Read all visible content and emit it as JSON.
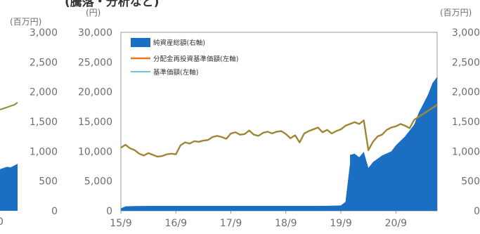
{
  "header": {
    "cut_title": "(騰落・分析など)"
  },
  "chart_data": [
    {
      "type": "area",
      "note_visibility": "partial",
      "y_right_unit": "(百万円)",
      "y_right_ticks": [
        "3,000",
        "2,500",
        "2,000",
        "1,500",
        "1,000",
        "500",
        "0"
      ],
      "x_ticks": [
        "0"
      ],
      "series": [
        {
          "values": [
            700,
            720,
            740,
            730,
            760,
            790
          ]
        },
        {
          "values": [
            1700,
            1720,
            1740,
            1760,
            1780,
            1820
          ]
        }
      ]
    },
    {
      "type": "line",
      "ylabel_left": "(円)",
      "ylabel_right": "(百万円)",
      "ylim_left": [
        0,
        30000
      ],
      "ylim_right": [
        0,
        3000
      ],
      "y_left_ticks": [
        "30,000",
        "25,000",
        "20,000",
        "15,000",
        "10,000",
        "5,000",
        "0"
      ],
      "y_right_ticks": [
        "3,000",
        "2,500",
        "2,000",
        "1,500",
        "1,000",
        "500",
        "0"
      ],
      "x_ticks": [
        "15/9",
        "16/9",
        "17/9",
        "18/9",
        "19/9",
        "20/9"
      ],
      "legend": [
        "純資産総額(右軸)",
        "分配金再投資基準価額(左軸)",
        "基準価額(左軸)"
      ],
      "colors": {
        "net_assets": "#1a6fc2",
        "reinvest": "#e87722",
        "nav": "#6ac7d6",
        "overlap": "#8c8c3a"
      },
      "x_range": [
        "2015-09",
        "2021-06"
      ],
      "series": [
        {
          "name": "純資産総額(右軸)",
          "axis": "right",
          "kind": "area",
          "x": [
            "2015-09",
            "2015-10",
            "2015-12",
            "2016-03",
            "2016-06",
            "2016-09",
            "2016-12",
            "2017-03",
            "2017-06",
            "2017-09",
            "2017-12",
            "2018-03",
            "2018-06",
            "2018-09",
            "2018-12",
            "2019-03",
            "2019-06",
            "2019-09",
            "2019-10",
            "2019-11",
            "2019-11",
            "2019-12",
            "2020-01",
            "2020-02",
            "2020-03",
            "2020-04",
            "2020-06",
            "2020-08",
            "2020-09",
            "2020-11",
            "2020-12",
            "2021-01",
            "2021-02",
            "2021-03",
            "2021-04",
            "2021-05",
            "2021-06"
          ],
          "values": [
            40,
            75,
            80,
            82,
            82,
            83,
            82,
            82,
            82,
            82,
            82,
            82,
            82,
            83,
            82,
            83,
            84,
            90,
            150,
            800,
            940,
            960,
            900,
            990,
            720,
            820,
            930,
            1000,
            1100,
            1250,
            1350,
            1450,
            1650,
            1800,
            1950,
            2150,
            2250
          ]
        },
        {
          "name": "分配金再投資基準価額(左軸)",
          "axis": "left",
          "kind": "line",
          "x": [
            "2015-09",
            "2015-10",
            "2015-11",
            "2015-12",
            "2016-01",
            "2016-02",
            "2016-03",
            "2016-04",
            "2016-05",
            "2016-06",
            "2016-07",
            "2016-08",
            "2016-09",
            "2016-10",
            "2016-11",
            "2016-12",
            "2017-01",
            "2017-02",
            "2017-03",
            "2017-04",
            "2017-05",
            "2017-06",
            "2017-07",
            "2017-08",
            "2017-09",
            "2017-10",
            "2017-11",
            "2017-12",
            "2018-01",
            "2018-02",
            "2018-03",
            "2018-04",
            "2018-05",
            "2018-06",
            "2018-07",
            "2018-08",
            "2018-09",
            "2018-10",
            "2018-11",
            "2018-12",
            "2019-01",
            "2019-02",
            "2019-03",
            "2019-04",
            "2019-05",
            "2019-06",
            "2019-07",
            "2019-08",
            "2019-09",
            "2019-10",
            "2019-11",
            "2019-12",
            "2020-01",
            "2020-02",
            "2020-03",
            "2020-04",
            "2020-05",
            "2020-06",
            "2020-07",
            "2020-08",
            "2020-09",
            "2020-10",
            "2020-11",
            "2020-12",
            "2021-01",
            "2021-02",
            "2021-03",
            "2021-04",
            "2021-05",
            "2021-06"
          ],
          "values": [
            10600,
            11100,
            10500,
            10200,
            9600,
            9300,
            9700,
            9400,
            9100,
            9200,
            9500,
            9600,
            9500,
            11000,
            11500,
            11300,
            11700,
            11600,
            11800,
            11900,
            12400,
            12600,
            12400,
            12100,
            13000,
            13200,
            12800,
            12900,
            13500,
            12800,
            12600,
            13100,
            13300,
            13000,
            13300,
            13400,
            12900,
            12200,
            12700,
            11500,
            13000,
            13400,
            13700,
            14000,
            13200,
            13600,
            13000,
            13400,
            13700,
            14300,
            14600,
            14900,
            14600,
            15200,
            10200,
            11600,
            12500,
            12800,
            13600,
            14000,
            14200,
            14600,
            14300,
            13900,
            15300,
            15800,
            16300,
            16800,
            17300,
            17800
          ]
        },
        {
          "name": "基準価額(左軸)",
          "axis": "left",
          "kind": "line",
          "x": [
            "2015-09",
            "2015-10",
            "2015-11",
            "2015-12",
            "2016-01",
            "2016-02",
            "2016-03",
            "2016-04",
            "2016-05",
            "2016-06",
            "2016-07",
            "2016-08",
            "2016-09",
            "2016-10",
            "2016-11",
            "2016-12",
            "2017-01",
            "2017-02",
            "2017-03",
            "2017-04",
            "2017-05",
            "2017-06",
            "2017-07",
            "2017-08",
            "2017-09",
            "2017-10",
            "2017-11",
            "2017-12",
            "2018-01",
            "2018-02",
            "2018-03",
            "2018-04",
            "2018-05",
            "2018-06",
            "2018-07",
            "2018-08",
            "2018-09",
            "2018-10",
            "2018-11",
            "2018-12",
            "2019-01",
            "2019-02",
            "2019-03",
            "2019-04",
            "2019-05",
            "2019-06",
            "2019-07",
            "2019-08",
            "2019-09",
            "2019-10",
            "2019-11",
            "2019-12",
            "2020-01",
            "2020-02",
            "2020-03",
            "2020-04",
            "2020-05",
            "2020-06",
            "2020-07",
            "2020-08",
            "2020-09",
            "2020-10",
            "2020-11",
            "2020-12",
            "2021-01",
            "2021-02",
            "2021-03",
            "2021-04",
            "2021-05",
            "2021-06"
          ],
          "values": [
            10600,
            11100,
            10500,
            10200,
            9600,
            9300,
            9700,
            9400,
            9100,
            9200,
            9500,
            9600,
            9500,
            11000,
            11500,
            11300,
            11700,
            11600,
            11800,
            11900,
            12400,
            12600,
            12400,
            12100,
            13000,
            13200,
            12800,
            12900,
            13500,
            12800,
            12600,
            13100,
            13300,
            13000,
            13300,
            13400,
            12900,
            12200,
            12700,
            11500,
            13000,
            13400,
            13700,
            14000,
            13200,
            13600,
            13000,
            13400,
            13700,
            14300,
            14600,
            14900,
            14600,
            15200,
            10200,
            11600,
            12500,
            12800,
            13600,
            14000,
            14200,
            14600,
            14300,
            13900,
            15300,
            15800,
            16300,
            16800,
            17300,
            17800
          ]
        }
      ]
    }
  ]
}
